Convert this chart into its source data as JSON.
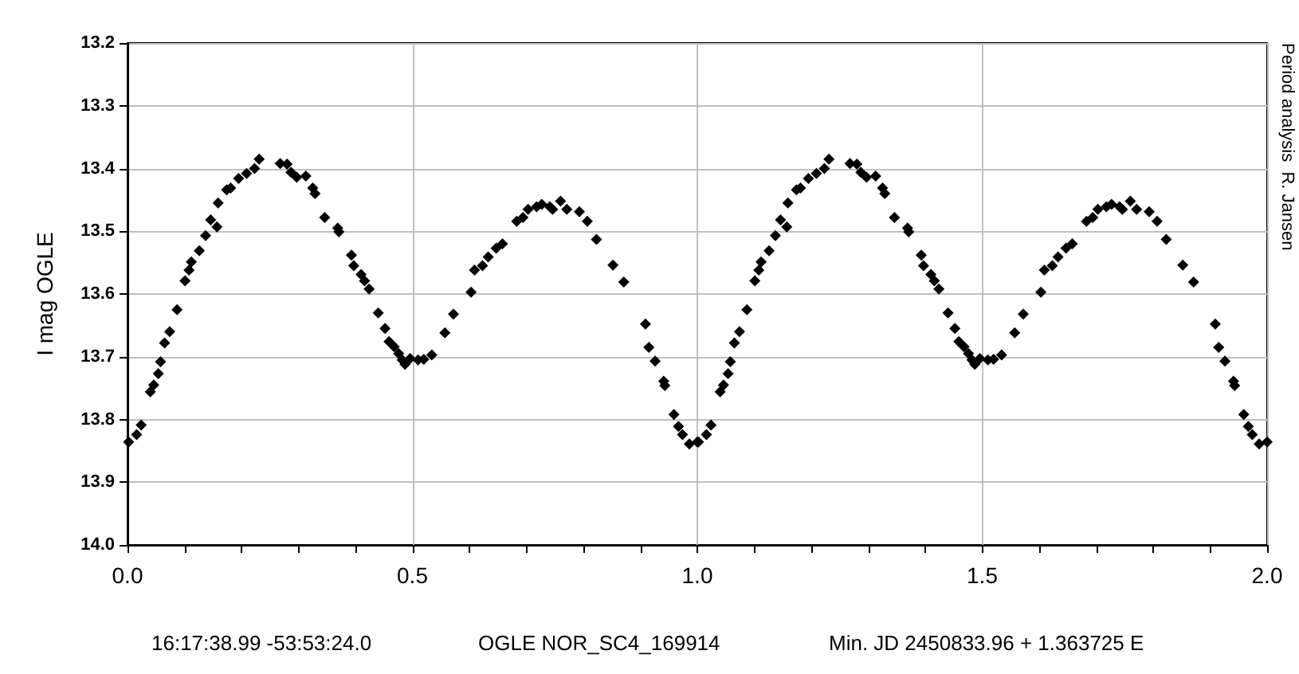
{
  "chart_data": {
    "type": "scatter",
    "ylabel": "I mag OGLE",
    "marker": "diamond",
    "grid": true,
    "xlim": [
      0,
      2
    ],
    "ylim": [
      14.0,
      13.2
    ],
    "xticks": [
      {
        "value": 0,
        "label": "0.0"
      },
      {
        "value": 0.1,
        "label": null
      },
      {
        "value": 0.2,
        "label": null
      },
      {
        "value": 0.3,
        "label": null
      },
      {
        "value": 0.4,
        "label": null
      },
      {
        "value": 0.5,
        "label": "0.5"
      },
      {
        "value": 0.6,
        "label": null
      },
      {
        "value": 0.7,
        "label": null
      },
      {
        "value": 0.8,
        "label": null
      },
      {
        "value": 0.9,
        "label": null
      },
      {
        "value": 1,
        "label": "1.0"
      },
      {
        "value": 1.1,
        "label": null
      },
      {
        "value": 1.2,
        "label": null
      },
      {
        "value": 1.3,
        "label": null
      },
      {
        "value": 1.4,
        "label": null
      },
      {
        "value": 1.5,
        "label": "1.5"
      },
      {
        "value": 1.6,
        "label": null
      },
      {
        "value": 1.7,
        "label": null
      },
      {
        "value": 1.8,
        "label": null
      },
      {
        "value": 1.9,
        "label": null
      },
      {
        "value": 2,
        "label": "2.0"
      }
    ],
    "yticks": [
      {
        "value": 13.2,
        "label": "13.2"
      },
      {
        "value": 13.3,
        "label": "13.3"
      },
      {
        "value": 13.4,
        "label": "13.4"
      },
      {
        "value": 13.5,
        "label": "13.5"
      },
      {
        "value": 13.6,
        "label": "13.6"
      },
      {
        "value": 13.7,
        "label": "13.7"
      },
      {
        "value": 13.8,
        "label": "13.8"
      },
      {
        "value": 13.9,
        "label": "13.9"
      },
      {
        "value": 14.0,
        "label": "14.0"
      }
    ],
    "annotations": [
      "Period analysis  R. Jansen",
      "16:17:38.99 -53:53:24.0",
      "OGLE NOR_SC4_169914",
      "Min. JD 2450833.96 + 1.363725 E"
    ],
    "series": [
      {
        "color": "#000000",
        "x": [
          0.002,
          0.016,
          0.024,
          0.04,
          0.046,
          0.054,
          0.058,
          0.065,
          0.074,
          0.087,
          0.101,
          0.108,
          0.112,
          0.126,
          0.137,
          0.146,
          0.157,
          0.159,
          0.174,
          0.181,
          0.195,
          0.209,
          0.223,
          0.231,
          0.268,
          0.28,
          0.287,
          0.297,
          0.313,
          0.325,
          0.329,
          0.346,
          0.369,
          0.371,
          0.393,
          0.397,
          0.41,
          0.416,
          0.424,
          0.44,
          0.452,
          0.459,
          0.468,
          0.476,
          0.482,
          0.487,
          0.496,
          0.51,
          0.52,
          0.534,
          0.557,
          0.572,
          0.603,
          0.609,
          0.623,
          0.633,
          0.647,
          0.658,
          0.683,
          0.694,
          0.703,
          0.718,
          0.727,
          0.741,
          0.746,
          0.76,
          0.771,
          0.793,
          0.807,
          0.823,
          0.852,
          0.871,
          0.909,
          0.915,
          0.926,
          0.941,
          0.943,
          0.959,
          0.967,
          0.974,
          0.986,
          1.0,
          1.002,
          1.016,
          1.024,
          1.04,
          1.046,
          1.054,
          1.058,
          1.065,
          1.074,
          1.087,
          1.101,
          1.108,
          1.112,
          1.126,
          1.137,
          1.146,
          1.157,
          1.159,
          1.174,
          1.181,
          1.195,
          1.209,
          1.223,
          1.231,
          1.268,
          1.28,
          1.287,
          1.297,
          1.313,
          1.325,
          1.329,
          1.346,
          1.369,
          1.371,
          1.393,
          1.397,
          1.41,
          1.416,
          1.424,
          1.44,
          1.452,
          1.459,
          1.468,
          1.476,
          1.482,
          1.487,
          1.496,
          1.51,
          1.52,
          1.534,
          1.557,
          1.572,
          1.603,
          1.609,
          1.623,
          1.633,
          1.647,
          1.658,
          1.683,
          1.694,
          1.703,
          1.718,
          1.727,
          1.741,
          1.746,
          1.76,
          1.771,
          1.793,
          1.807,
          1.823,
          1.852,
          1.871,
          1.909,
          1.915,
          1.926,
          1.941,
          1.943,
          1.959,
          1.967,
          1.974,
          1.986,
          2.0
        ],
        "values": [
          13.836,
          13.824,
          13.809,
          13.756,
          13.745,
          13.727,
          13.708,
          13.678,
          13.66,
          13.625,
          13.579,
          13.562,
          13.549,
          13.531,
          13.507,
          13.482,
          13.493,
          13.455,
          13.434,
          13.431,
          13.416,
          13.408,
          13.4,
          13.385,
          13.392,
          13.393,
          13.406,
          13.414,
          13.412,
          13.431,
          13.44,
          13.478,
          13.495,
          13.501,
          13.538,
          13.555,
          13.569,
          13.579,
          13.592,
          13.63,
          13.655,
          13.676,
          13.684,
          13.695,
          13.705,
          13.712,
          13.703,
          13.705,
          13.704,
          13.697,
          13.662,
          13.632,
          13.597,
          13.562,
          13.555,
          13.541,
          13.527,
          13.52,
          13.484,
          13.478,
          13.465,
          13.461,
          13.457,
          13.461,
          13.465,
          13.452,
          13.465,
          13.469,
          13.484,
          13.513,
          13.554,
          13.581,
          13.648,
          13.685,
          13.707,
          13.739,
          13.746,
          13.792,
          13.811,
          13.824,
          13.839,
          13.836,
          13.836,
          13.824,
          13.809,
          13.756,
          13.745,
          13.727,
          13.708,
          13.678,
          13.66,
          13.625,
          13.579,
          13.562,
          13.549,
          13.531,
          13.507,
          13.482,
          13.493,
          13.455,
          13.434,
          13.431,
          13.416,
          13.408,
          13.4,
          13.385,
          13.392,
          13.393,
          13.406,
          13.414,
          13.412,
          13.431,
          13.44,
          13.478,
          13.495,
          13.501,
          13.538,
          13.555,
          13.569,
          13.579,
          13.592,
          13.63,
          13.655,
          13.676,
          13.684,
          13.695,
          13.705,
          13.712,
          13.703,
          13.705,
          13.704,
          13.697,
          13.662,
          13.632,
          13.597,
          13.562,
          13.555,
          13.541,
          13.527,
          13.52,
          13.484,
          13.478,
          13.465,
          13.461,
          13.457,
          13.461,
          13.465,
          13.452,
          13.465,
          13.469,
          13.484,
          13.513,
          13.554,
          13.581,
          13.648,
          13.685,
          13.707,
          13.739,
          13.746,
          13.792,
          13.811,
          13.824,
          13.839,
          13.836
        ]
      }
    ]
  }
}
